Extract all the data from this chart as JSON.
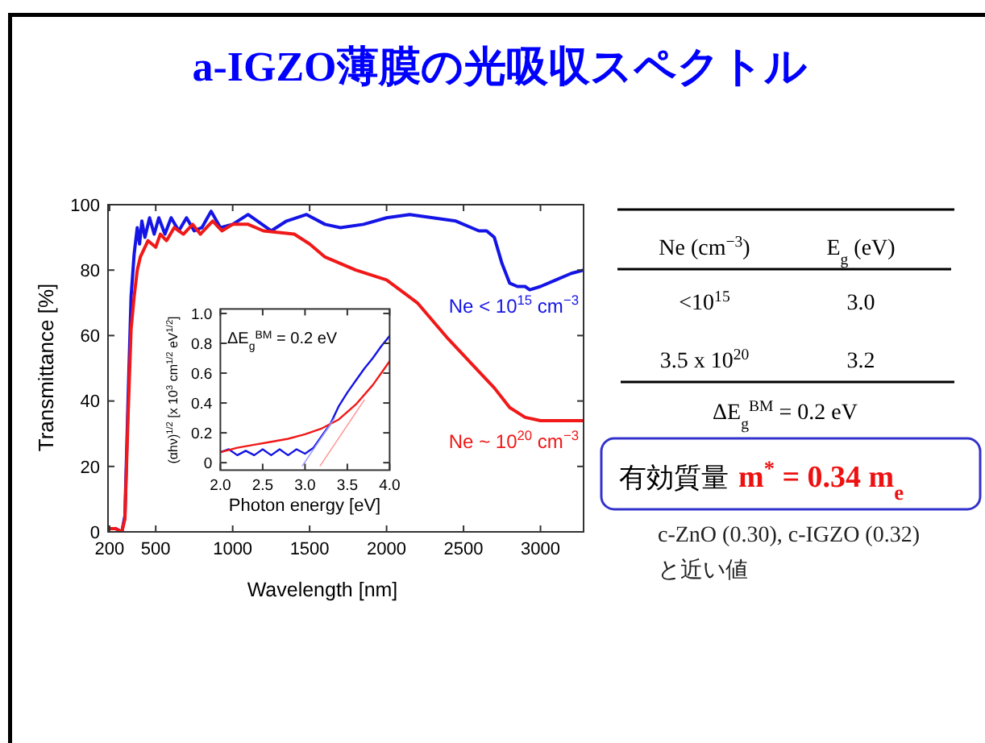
{
  "chart_data": [
    {
      "type": "line",
      "title": "a-IGZO薄膜の光吸収スペクトル",
      "xlabel": "Wavelength [nm]",
      "ylabel": "Transmittance [%]",
      "xlim": [
        190,
        3280
      ],
      "ylim": [
        0,
        100
      ],
      "xticks": [
        200,
        500,
        1000,
        1500,
        2000,
        2500,
        3000
      ],
      "yticks": [
        0,
        20,
        40,
        60,
        80,
        100
      ],
      "series": [
        {
          "name": "Ne < 10$^{15}$ cm$^{−3}$",
          "color": "#1414e6",
          "x": [
            240,
            280,
            300,
            320,
            340,
            360,
            380,
            395,
            410,
            430,
            460,
            490,
            520,
            560,
            600,
            650,
            700,
            750,
            800,
            860,
            920,
            1000,
            1100,
            1250,
            1350,
            1480,
            1600,
            1700,
            1850,
            2000,
            2150,
            2300,
            2450,
            2600,
            2650,
            2700,
            2750,
            2800,
            2850,
            2900,
            2930,
            3000,
            3100,
            3200,
            3280
          ],
          "values": [
            1,
            0,
            5,
            40,
            72,
            85,
            93,
            88,
            95,
            90,
            96,
            91,
            96,
            91,
            96,
            92,
            96,
            92,
            93,
            98,
            93,
            94,
            97,
            92,
            95,
            97,
            94,
            93,
            94,
            96,
            97,
            96,
            95,
            92,
            92,
            90,
            82,
            76,
            75,
            75,
            74,
            75,
            77,
            79,
            80
          ]
        },
        {
          "name": "Ne ~ 10$^{20}$ cm$^{−3}$",
          "color": "#f01818",
          "x": [
            200,
            240,
            280,
            300,
            320,
            340,
            360,
            380,
            400,
            450,
            500,
            530,
            570,
            620,
            680,
            740,
            790,
            870,
            930,
            1000,
            1100,
            1200,
            1400,
            1500,
            1600,
            1800,
            2000,
            2200,
            2400,
            2600,
            2700,
            2800,
            2900,
            3000,
            3200,
            3280
          ],
          "values": [
            1,
            1,
            0,
            4,
            35,
            62,
            72,
            80,
            84,
            89,
            87,
            91,
            89,
            93,
            91,
            94,
            91,
            95,
            92,
            94,
            94,
            92,
            91,
            88,
            84,
            80,
            77,
            70,
            59,
            49,
            44,
            38,
            35,
            34,
            34,
            34
          ]
        }
      ]
    },
    {
      "type": "line",
      "xlabel": "Photon energy [eV]",
      "ylabel": "(αhν)$^{1/2}$ [x 10$^{3}$ cm$^{1/2}$ eV$^{1/2}$]",
      "annotations": [
        "ΔE$_{g}$$^{BM}$ = 0.2 eV"
      ],
      "xlim": [
        2,
        4
      ],
      "ylim": [
        -0.05,
        1.03
      ],
      "xticks": [
        {
          "value": 2,
          "label": "2.0"
        },
        2.5,
        {
          "value": 3,
          "label": "3.0"
        },
        3.5,
        {
          "value": 4,
          "label": "4.0"
        }
      ],
      "yticks": [
        0,
        0.2,
        0.4,
        0.6,
        0.8,
        {
          "value": 1,
          "label": "1.0"
        }
      ],
      "series": [
        {
          "color": "#1414e6",
          "x": [
            2.0,
            2.1,
            2.2,
            2.3,
            2.4,
            2.5,
            2.6,
            2.7,
            2.8,
            2.9,
            3.0,
            3.1,
            3.2,
            3.3,
            3.4,
            3.5,
            3.6,
            3.7,
            3.8,
            3.9,
            4.0
          ],
          "values": [
            0.07,
            0.09,
            0.05,
            0.08,
            0.05,
            0.09,
            0.05,
            0.09,
            0.05,
            0.09,
            0.06,
            0.1,
            0.18,
            0.26,
            0.38,
            0.47,
            0.55,
            0.63,
            0.7,
            0.78,
            0.85
          ]
        },
        {
          "color": "#f01818",
          "x": [
            2.0,
            2.2,
            2.4,
            2.6,
            2.8,
            3.0,
            3.2,
            3.4,
            3.6,
            3.8,
            4.0
          ],
          "values": [
            0.07,
            0.1,
            0.12,
            0.14,
            0.16,
            0.19,
            0.23,
            0.29,
            0.39,
            0.52,
            0.68
          ]
        },
        {
          "color": "#9a9aff",
          "x": [
            2.97,
            3.35
          ],
          "values": [
            -0.02,
            0.3
          ]
        },
        {
          "color": "#ff9a9a",
          "x": [
            3.18,
            3.7
          ],
          "values": [
            -0.02,
            0.42
          ]
        }
      ]
    },
    {
      "type": "other",
      "annotations": [
        "Ne (cm$^{−3}$)",
        "E$_{g}$ (eV)",
        "<10$^{15}$",
        "3.0",
        "3.5 x 10$^{20}$",
        "3.2",
        "ΔE$_{g}$$^{BM}$ = 0.2 eV",
        "有効質量",
        "m$^{*}$ = 0.34 m$_{e}$",
        "c-ZnO (0.30), c-IGZO (0.32)",
        "と近い値"
      ]
    }
  ]
}
